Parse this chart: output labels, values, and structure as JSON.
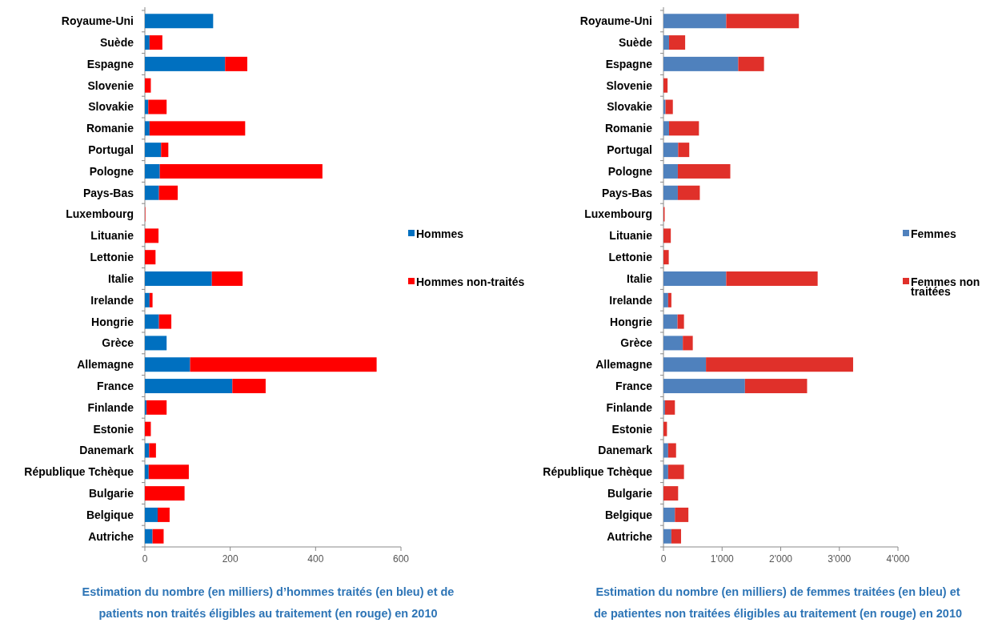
{
  "chart_data": [
    {
      "type": "bar",
      "orientation": "horizontal",
      "stacked": true,
      "legend": "right",
      "categories": [
        "Royaume-Uni",
        "Suède",
        "Espagne",
        "Slovenie",
        "Slovakie",
        "Romanie",
        "Portugal",
        "Pologne",
        "Pays-Bas",
        "Luxembourg",
        "Lituanie",
        "Lettonie",
        "Italie",
        "Irelande",
        "Hongrie",
        "Grèce",
        "Allemagne",
        "France",
        "Finlande",
        "Estonie",
        "Danemark",
        "République Tchèque",
        "Bulgarie",
        "Belgique",
        "Autriche"
      ],
      "series": [
        {
          "name": "Hommes",
          "color": "#0070c0",
          "values": [
            160,
            11,
            188,
            0,
            8,
            11,
            38,
            35,
            33,
            0,
            0,
            0,
            157,
            11,
            33,
            51,
            106,
            205,
            4,
            0,
            10,
            9,
            0,
            30,
            18
          ]
        },
        {
          "name": "Hommes non-traités",
          "color": "#ff0000",
          "values": [
            0,
            30,
            52,
            14,
            43,
            224,
            17,
            381,
            44,
            1,
            32,
            25,
            72,
            7,
            29,
            0,
            437,
            78,
            47,
            14,
            16,
            94,
            93,
            28,
            26
          ]
        }
      ],
      "xlim": [
        0,
        600
      ],
      "xticks": [
        0,
        200,
        400,
        600
      ],
      "annotations": [
        "Estimation du nombre (en milliers) d’hommes traités (en bleu) et de patients non traités éligibles au traitement (en rouge) en 2010"
      ]
    },
    {
      "type": "bar",
      "orientation": "horizontal",
      "stacked": true,
      "legend": "right",
      "categories": [
        "Royaume-Uni",
        "Suède",
        "Espagne",
        "Slovenie",
        "Slovakie",
        "Romanie",
        "Portugal",
        "Pologne",
        "Pays-Bas",
        "Luxembourg",
        "Lituanie",
        "Lettonie",
        "Italie",
        "Irelande",
        "Hongrie",
        "Grèce",
        "Allemagne",
        "France",
        "Finlande",
        "Estonie",
        "Danemark",
        "République Tchèque",
        "Bulgarie",
        "Belgique",
        "Autriche"
      ],
      "series": [
        {
          "name": "Femmes",
          "color": "#4f81bd",
          "values": [
            1070,
            95,
            1275,
            null,
            35,
            95,
            250,
            245,
            245,
            0,
            0,
            0,
            1070,
            80,
            240,
            330,
            725,
            1390,
            25,
            0,
            80,
            80,
            0,
            195,
            135
          ]
        },
        {
          "name": "Femmes non traitées",
          "color": "#e0302a",
          "values": [
            1240,
            275,
            440,
            70,
            125,
            510,
            190,
            895,
            375,
            20,
            125,
            90,
            1560,
            55,
            110,
            170,
            2510,
            1060,
            170,
            60,
            135,
            270,
            250,
            230,
            165
          ]
        }
      ],
      "xlim": [
        0,
        4000
      ],
      "xticks": [
        0,
        {
          "value": 1000,
          "label": "1'000"
        },
        {
          "value": 2000,
          "label": "2'000"
        },
        {
          "value": 3000,
          "label": "3'000"
        },
        {
          "value": 4000,
          "label": "4'000"
        }
      ],
      "annotations": [
        "Estimation du nombre (en milliers) de femmes traitées (en bleu) et de patientes non traitées éligibles au traitement (en rouge) en 2010"
      ]
    }
  ]
}
